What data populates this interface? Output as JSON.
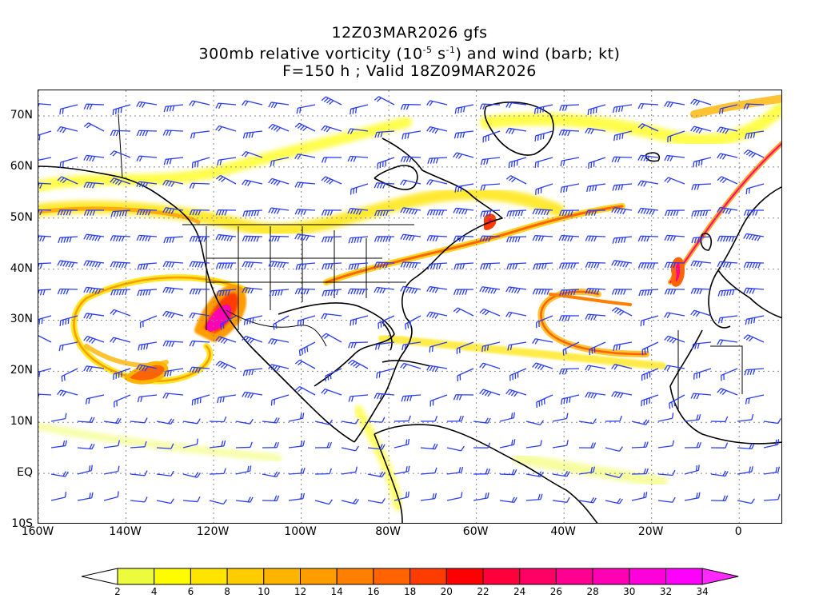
{
  "titles": {
    "line1": "12Z03MAR2026 gfs",
    "line2_pre": "300mb relative vorticity (10",
    "line2_exp1": "-5",
    "line2_mid": " s",
    "line2_exp2": "-1",
    "line2_post": ") and wind (barb; kt)",
    "line3": "F=150 h ; Valid 18Z09MAR2026"
  },
  "map": {
    "projection": "cylindrical",
    "lon_range": [
      -160,
      10
    ],
    "lat_range": [
      -10,
      75
    ],
    "lat_ticks": [
      {
        "value": 70,
        "label": "70N"
      },
      {
        "value": 60,
        "label": "60N"
      },
      {
        "value": 50,
        "label": "50N"
      },
      {
        "value": 40,
        "label": "40N"
      },
      {
        "value": 30,
        "label": "30N"
      },
      {
        "value": 20,
        "label": "20N"
      },
      {
        "value": 10,
        "label": "10N"
      },
      {
        "value": 0,
        "label": "EQ"
      },
      {
        "value": -10,
        "label": "10S"
      }
    ],
    "lon_ticks": [
      {
        "value": -160,
        "label": "160W"
      },
      {
        "value": -140,
        "label": "140W"
      },
      {
        "value": -120,
        "label": "120W"
      },
      {
        "value": -100,
        "label": "100W"
      },
      {
        "value": -80,
        "label": "80W"
      },
      {
        "value": -60,
        "label": "60W"
      },
      {
        "value": -40,
        "label": "40W"
      },
      {
        "value": -20,
        "label": "20W"
      },
      {
        "value": 0,
        "label": "0"
      }
    ],
    "gridlines": "dotted",
    "barb_color": "#2a3cf0"
  },
  "colorbar": {
    "levels": [
      "2",
      "4",
      "6",
      "8",
      "10",
      "12",
      "14",
      "16",
      "18",
      "20",
      "22",
      "24",
      "26",
      "28",
      "30",
      "32",
      "34"
    ],
    "colors": [
      "#ffffff",
      "#ecfc3c",
      "#fffc00",
      "#ffe400",
      "#ffcc00",
      "#ffb400",
      "#ff9c00",
      "#ff8000",
      "#ff6400",
      "#ff3c00",
      "#ff0000",
      "#ff003c",
      "#ff0064",
      "#ff0090",
      "#ff00b4",
      "#ff00dc",
      "#ff00ff",
      "#ff28ff"
    ]
  }
}
